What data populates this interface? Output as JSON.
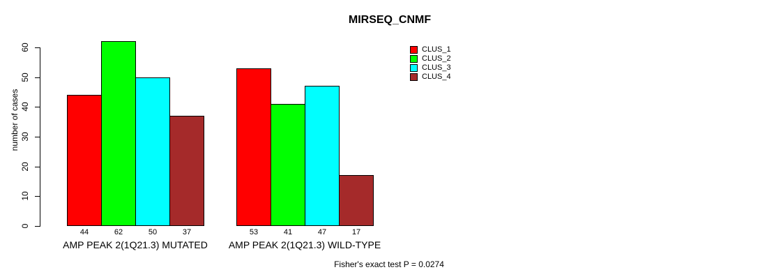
{
  "chart_data": {
    "type": "bar",
    "title": "MIRSEQ_CNMF",
    "ylabel": "number of cases",
    "xlabel": "",
    "ylim": [
      0,
      60
    ],
    "yticks": [
      0,
      10,
      20,
      30,
      40,
      50,
      60
    ],
    "grid": false,
    "legend_position": "right",
    "categories": [
      "AMP PEAK 2(1Q21.3) MUTATED",
      "AMP PEAK 2(1Q21.3) WILD-TYPE"
    ],
    "series": [
      {
        "name": "CLUS_1",
        "color": "#FF0000",
        "values": [
          44,
          53
        ]
      },
      {
        "name": "CLUS_2",
        "color": "#00FF00",
        "values": [
          62,
          41
        ]
      },
      {
        "name": "CLUS_3",
        "color": "#00FFFF",
        "values": [
          50,
          47
        ]
      },
      {
        "name": "CLUS_4",
        "color": "#A52A2A",
        "values": [
          37,
          17
        ]
      }
    ],
    "bar_value_labels_shown": true,
    "annotation": "Fisher's exact test P = 0.0274"
  }
}
